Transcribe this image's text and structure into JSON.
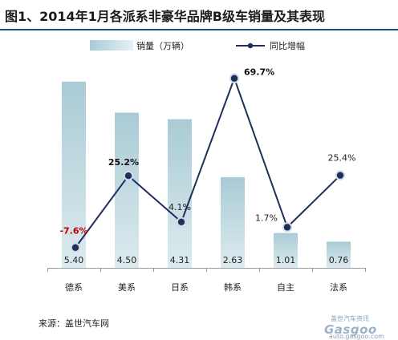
{
  "title": "图1、2014年1月各派系非豪华品牌B级车销量及其表现",
  "source": "来源：盖世汽车网",
  "watermark": {
    "cn": "盖世汽车资讯",
    "brand": "Gasgoo",
    "url": "auto.gasgoo.com"
  },
  "chart_data": {
    "type": "bar",
    "categories": [
      "德系",
      "美系",
      "日系",
      "韩系",
      "自主",
      "法系"
    ],
    "series": [
      {
        "name": "销量（万辆）",
        "type": "bar",
        "values": [
          5.4,
          4.5,
          4.31,
          2.63,
          1.01,
          0.76
        ],
        "labels": [
          "5.40",
          "4.50",
          "4.31",
          "2.63",
          "1.01",
          "0.76"
        ],
        "color": "#b9d6de"
      },
      {
        "name": "同比增幅",
        "type": "line",
        "values": [
          -7.6,
          25.2,
          4.1,
          69.7,
          1.7,
          25.4
        ],
        "labels": [
          "-7.6%",
          "25.2%",
          "4.1%",
          "69.7%",
          "1.7%",
          "25.4%"
        ],
        "label_colors": [
          "#c00000",
          "#111111",
          "#222222",
          "#111111",
          "#222222",
          "#222222"
        ],
        "label_bold": [
          true,
          true,
          false,
          true,
          false,
          false
        ],
        "color": "#1f2f5c"
      }
    ],
    "legend_position": "top",
    "grid": false
  }
}
